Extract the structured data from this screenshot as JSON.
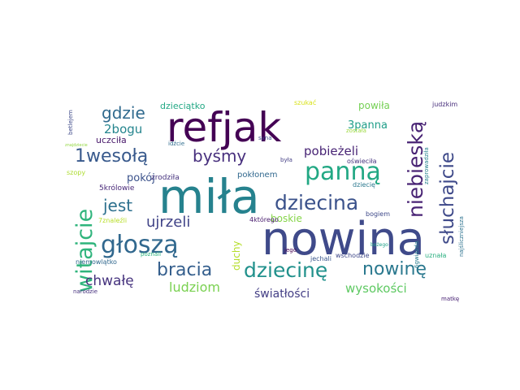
{
  "words": [
    {
      "text": "nowina",
      "color": "#3f4a8a"
    },
    {
      "text": "miła",
      "color": "#26828e"
    },
    {
      "text": "refjak",
      "color": "#440154"
    },
    {
      "text": "panną",
      "color": "#22a884"
    },
    {
      "text": "głoszą",
      "color": "#31688e"
    },
    {
      "text": "dziecina",
      "color": "#3b528b"
    },
    {
      "text": "dziecinę",
      "color": "#21918c"
    },
    {
      "text": "nowinę",
      "color": "#2a788e"
    },
    {
      "text": "witajcie",
      "color": "#2fb47c"
    },
    {
      "text": "bracia",
      "color": "#355f8d"
    },
    {
      "text": "niebieską",
      "color": "#482374"
    },
    {
      "text": "słuchajcie",
      "color": "#3e4989"
    },
    {
      "text": "1wesołą",
      "color": "#38598c"
    },
    {
      "text": "byśmy",
      "color": "#472f7d"
    },
    {
      "text": "gdzie",
      "color": "#306a8e"
    },
    {
      "text": "jest",
      "color": "#2d708e"
    },
    {
      "text": "ujrzeli",
      "color": "#404387"
    },
    {
      "text": "chwałę",
      "color": "#46337e"
    },
    {
      "text": "ludziom",
      "color": "#7ad151"
    },
    {
      "text": "światłości",
      "color": "#433e85"
    },
    {
      "text": "wysokości",
      "color": "#5ec962"
    },
    {
      "text": "pobieżeli",
      "color": "#482475"
    },
    {
      "text": "2bogu",
      "color": "#25858e"
    },
    {
      "text": "3panna",
      "color": "#1f9e89"
    },
    {
      "text": "pokój",
      "color": "#3b528b"
    },
    {
      "text": "boskie",
      "color": "#86d549"
    },
    {
      "text": "duchy",
      "color": "#b5de2b"
    },
    {
      "text": "powiła",
      "color": "#75d054"
    },
    {
      "text": "dzieciątko",
      "color": "#22a884"
    },
    {
      "text": "uczciła",
      "color": "#48186a"
    },
    {
      "text": "pokłonem",
      "color": "#31688e"
    },
    {
      "text": "zrodziła",
      "color": "#46337e"
    },
    {
      "text": "5królowie",
      "color": "#482878"
    },
    {
      "text": "7znaleźli",
      "color": "#b8de29"
    },
    {
      "text": "4którego",
      "color": "#481b6d"
    },
    {
      "text": "bogiem",
      "color": "#3e4989"
    },
    {
      "text": "dziecię",
      "color": "#2a788e"
    },
    {
      "text": "szukać",
      "color": "#d8e219"
    },
    {
      "text": "syna",
      "color": "#3b528b"
    },
    {
      "text": "została",
      "color": "#9bd93c"
    },
    {
      "text": "była",
      "color": "#433e85"
    },
    {
      "text": "oświeciła",
      "color": "#46327e"
    },
    {
      "text": "judzkim",
      "color": "#472d7b"
    },
    {
      "text": "zaprowadziła",
      "color": "#25838e"
    },
    {
      "text": "najśliczniejsza",
      "color": "#2c728e"
    },
    {
      "text": "6gwiazda",
      "color": "#287c8e"
    },
    {
      "text": "uznała",
      "color": "#29af7f"
    },
    {
      "text": "wschodzie",
      "color": "#3f4889"
    },
    {
      "text": "jechali",
      "color": "#39568c"
    },
    {
      "text": "jego",
      "color": "#440154"
    },
    {
      "text": "bożego",
      "color": "#1fa188"
    },
    {
      "text": "matkę",
      "color": "#482173"
    },
    {
      "text": "betlejem",
      "color": "#3e4a89"
    },
    {
      "text": "szopy",
      "color": "#addc30"
    },
    {
      "text": "niemowlątko",
      "color": "#31688e"
    },
    {
      "text": "narodzie",
      "color": "#46307e"
    },
    {
      "text": "poznali",
      "color": "#2db27d"
    },
    {
      "text": "idźcie",
      "color": "#2f6c8e"
    },
    {
      "text": "znajdziecie",
      "color": "#93d741"
    }
  ]
}
